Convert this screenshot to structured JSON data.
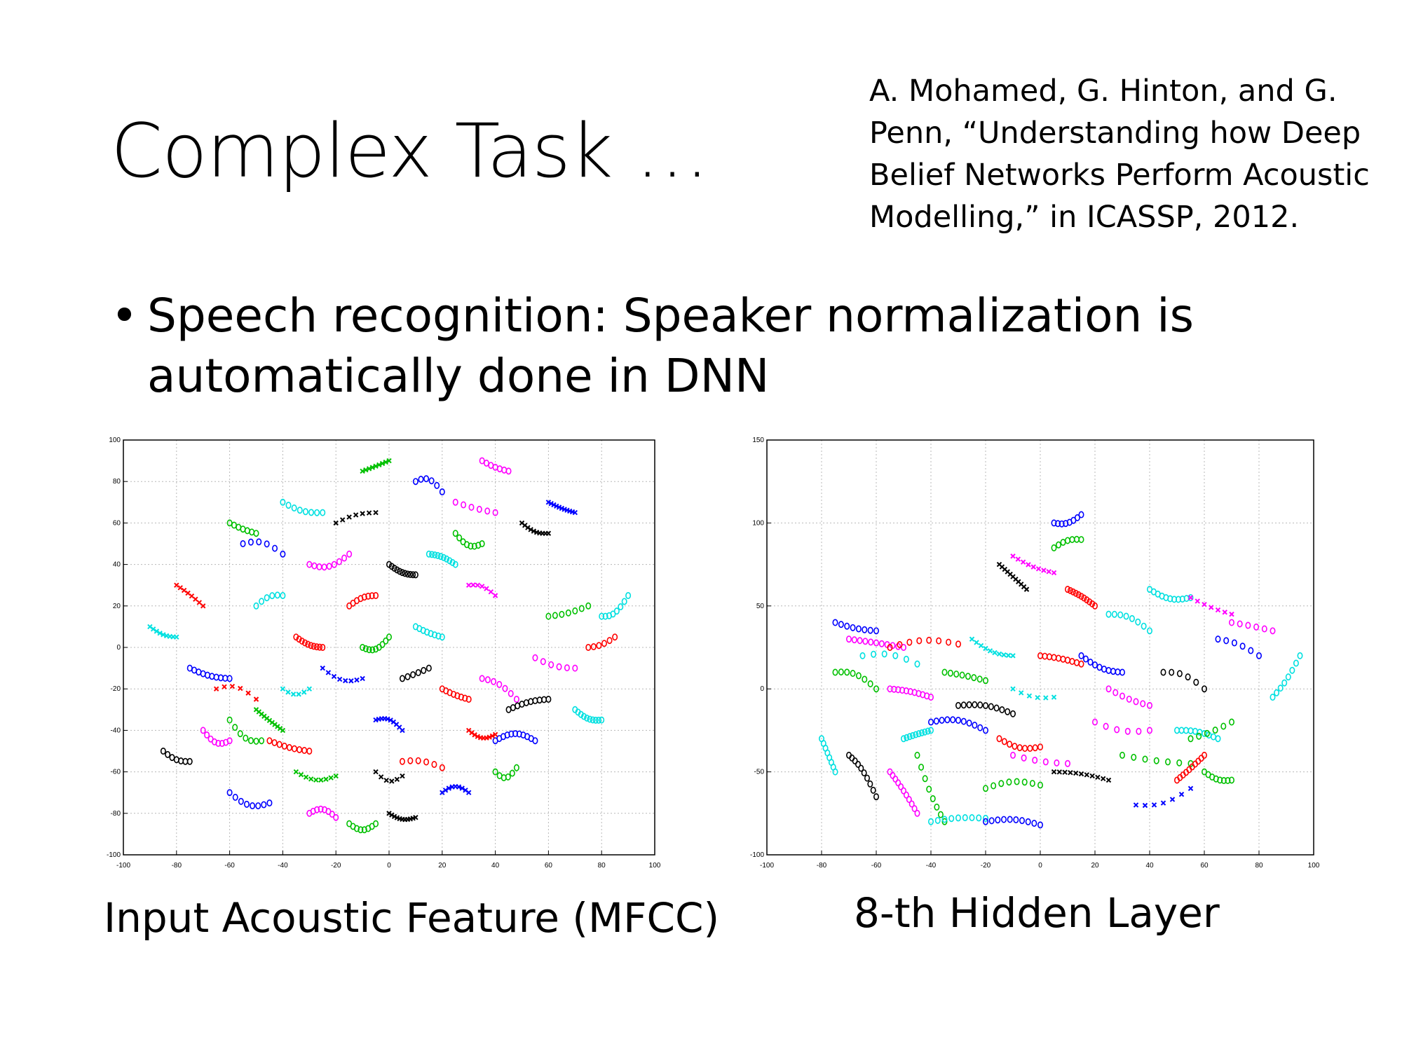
{
  "slide": {
    "title": "Complex Task …",
    "citation": "A. Mohamed, G. Hinton, and G. Penn, “Understanding how Deep Belief Networks Perform Acoustic Modelling,” in ICASSP, 2012.",
    "bullet_symbol": "•",
    "bullet": "Speech recognition: Speaker normalization is automatically done in DNN"
  },
  "captions": {
    "left": "Input Acoustic Feature (MFCC)",
    "right": "8-th Hidden Layer"
  },
  "colors": {
    "series": [
      "#ff0000",
      "#00c000",
      "#0000ff",
      "#00e0e0",
      "#ff00ff",
      "#000000"
    ]
  },
  "chart_data": [
    {
      "type": "scatter",
      "title": "",
      "xlabel": "",
      "ylabel": "",
      "xlim": [
        -100,
        100
      ],
      "ylim": [
        -100,
        100
      ],
      "xticks": [
        "-100",
        "-80",
        "-60",
        "-40",
        "-20",
        "0",
        "20",
        "40",
        "60",
        "80",
        "100"
      ],
      "yticks": [
        "100",
        "80",
        "60",
        "40",
        "20",
        "0",
        "-20",
        "-40",
        "-60",
        "-80",
        "-100"
      ],
      "grid": true,
      "markers": [
        "o",
        "x"
      ],
      "trajectories": [
        [
          -80,
          30,
          -70,
          20,
          "#ff0000"
        ],
        [
          -60,
          60,
          -50,
          55,
          "#00c000"
        ],
        [
          -55,
          50,
          -40,
          45,
          "#0000ff"
        ],
        [
          -40,
          70,
          -25,
          65,
          "#00e0e0"
        ],
        [
          -30,
          40,
          -15,
          45,
          "#ff00ff"
        ],
        [
          -20,
          60,
          -5,
          65,
          "#000000"
        ],
        [
          -10,
          85,
          0,
          90,
          "#00c000"
        ],
        [
          10,
          80,
          20,
          75,
          "#0000ff"
        ],
        [
          25,
          70,
          40,
          65,
          "#ff00ff"
        ],
        [
          35,
          90,
          45,
          85,
          "#ff00ff"
        ],
        [
          50,
          60,
          60,
          55,
          "#000000"
        ],
        [
          60,
          70,
          70,
          65,
          "#0000ff"
        ],
        [
          -90,
          10,
          -80,
          5,
          "#00e0e0"
        ],
        [
          -75,
          -10,
          -60,
          -15,
          "#0000ff"
        ],
        [
          -65,
          -20,
          -50,
          -25,
          "#ff0000"
        ],
        [
          -50,
          -30,
          -40,
          -40,
          "#00c000"
        ],
        [
          -45,
          -45,
          -30,
          -50,
          "#ff0000"
        ],
        [
          -35,
          -60,
          -20,
          -62,
          "#00c000"
        ],
        [
          -25,
          -10,
          -10,
          -15,
          "#0000ff"
        ],
        [
          -15,
          20,
          -5,
          25,
          "#ff0000"
        ],
        [
          0,
          40,
          10,
          35,
          "#000000"
        ],
        [
          10,
          10,
          20,
          5,
          "#00e0e0"
        ],
        [
          20,
          -20,
          30,
          -25,
          "#ff0000"
        ],
        [
          30,
          30,
          40,
          25,
          "#ff00ff"
        ],
        [
          35,
          -15,
          48,
          -25,
          "#ff00ff"
        ],
        [
          40,
          -45,
          55,
          -45,
          "#0000ff"
        ],
        [
          45,
          -30,
          60,
          -25,
          "#000000"
        ],
        [
          55,
          -5,
          70,
          -10,
          "#ff00ff"
        ],
        [
          60,
          15,
          75,
          20,
          "#00c000"
        ],
        [
          70,
          -30,
          80,
          -35,
          "#00e0e0"
        ],
        [
          75,
          0,
          85,
          5,
          "#ff0000"
        ],
        [
          80,
          15,
          90,
          25,
          "#00e0e0"
        ],
        [
          -30,
          -80,
          -20,
          -82,
          "#ff00ff"
        ],
        [
          -15,
          -85,
          -5,
          -85,
          "#00c000"
        ],
        [
          0,
          -80,
          10,
          -82,
          "#000000"
        ],
        [
          5,
          -55,
          20,
          -58,
          "#ff0000"
        ],
        [
          20,
          -70,
          30,
          -70,
          "#0000ff"
        ],
        [
          30,
          -40,
          40,
          -42,
          "#ff0000"
        ],
        [
          40,
          -60,
          48,
          -58,
          "#00c000"
        ],
        [
          -5,
          -35,
          5,
          -40,
          "#0000ff"
        ],
        [
          -60,
          -70,
          -45,
          -75,
          "#0000ff"
        ],
        [
          -70,
          -40,
          -60,
          -45,
          "#ff00ff"
        ],
        [
          -85,
          -50,
          -75,
          -55,
          "#000000"
        ],
        [
          -40,
          -20,
          -30,
          -20,
          "#00e0e0"
        ],
        [
          -10,
          0,
          0,
          5,
          "#00c000"
        ],
        [
          5,
          -15,
          15,
          -10,
          "#000000"
        ],
        [
          -50,
          20,
          -40,
          25,
          "#00e0e0"
        ],
        [
          -35,
          5,
          -25,
          0,
          "#ff0000"
        ],
        [
          15,
          45,
          25,
          40,
          "#00e0e0"
        ],
        [
          25,
          55,
          35,
          50,
          "#00c000"
        ],
        [
          -5,
          -60,
          5,
          -62,
          "#000000"
        ],
        [
          -60,
          -35,
          -48,
          -45,
          "#00c000"
        ]
      ]
    },
    {
      "type": "scatter",
      "title": "",
      "xlabel": "",
      "ylabel": "",
      "xlim": [
        -100,
        100
      ],
      "ylim": [
        -100,
        150
      ],
      "xticks": [
        "-100",
        "-80",
        "-60",
        "-40",
        "-20",
        "0",
        "20",
        "40",
        "60",
        "80",
        "100"
      ],
      "yticks": [
        "150",
        "100",
        "50",
        "0",
        "-50",
        "-100"
      ],
      "grid": true,
      "markers": [
        "o",
        "x"
      ],
      "trajectories": [
        [
          -75,
          40,
          -60,
          35,
          "#0000ff"
        ],
        [
          -70,
          30,
          -50,
          25,
          "#ff00ff"
        ],
        [
          -65,
          20,
          -45,
          15,
          "#00e0e0"
        ],
        [
          -55,
          25,
          -30,
          27,
          "#ff0000"
        ],
        [
          -75,
          10,
          -60,
          0,
          "#00c000"
        ],
        [
          -80,
          -30,
          -75,
          -50,
          "#00e0e0"
        ],
        [
          -70,
          -40,
          -60,
          -65,
          "#000000"
        ],
        [
          -55,
          -50,
          -45,
          -75,
          "#ff00ff"
        ],
        [
          -45,
          -40,
          -35,
          -80,
          "#00c000"
        ],
        [
          -40,
          -80,
          -20,
          -78,
          "#00e0e0"
        ],
        [
          -20,
          -80,
          0,
          -82,
          "#0000ff"
        ],
        [
          -20,
          -60,
          0,
          -58,
          "#00c000"
        ],
        [
          -10,
          -40,
          10,
          -45,
          "#ff00ff"
        ],
        [
          5,
          -50,
          25,
          -55,
          "#000000"
        ],
        [
          -25,
          30,
          -10,
          20,
          "#00e0e0"
        ],
        [
          -10,
          80,
          5,
          70,
          "#ff00ff"
        ],
        [
          -15,
          75,
          -5,
          60,
          "#000000"
        ],
        [
          5,
          100,
          15,
          105,
          "#0000ff"
        ],
        [
          5,
          85,
          15,
          90,
          "#00c000"
        ],
        [
          10,
          60,
          20,
          50,
          "#ff0000"
        ],
        [
          15,
          20,
          30,
          10,
          "#0000ff"
        ],
        [
          25,
          45,
          40,
          35,
          "#00e0e0"
        ],
        [
          20,
          -20,
          40,
          -25,
          "#ff00ff"
        ],
        [
          30,
          -40,
          55,
          -45,
          "#00c000"
        ],
        [
          35,
          -70,
          55,
          -60,
          "#0000ff"
        ],
        [
          50,
          -55,
          60,
          -40,
          "#ff0000"
        ],
        [
          40,
          60,
          55,
          55,
          "#00e0e0"
        ],
        [
          55,
          55,
          70,
          45,
          "#ff00ff"
        ],
        [
          65,
          30,
          80,
          20,
          "#0000ff"
        ],
        [
          70,
          40,
          85,
          35,
          "#ff00ff"
        ],
        [
          85,
          -5,
          95,
          20,
          "#00e0e0"
        ],
        [
          60,
          -50,
          70,
          -55,
          "#00c000"
        ],
        [
          -40,
          -20,
          -20,
          -25,
          "#0000ff"
        ],
        [
          -30,
          -10,
          -10,
          -15,
          "#000000"
        ],
        [
          -10,
          0,
          5,
          -5,
          "#00e0e0"
        ],
        [
          0,
          20,
          15,
          15,
          "#ff0000"
        ],
        [
          25,
          0,
          40,
          -10,
          "#ff00ff"
        ],
        [
          45,
          10,
          60,
          0,
          "#000000"
        ],
        [
          50,
          -25,
          65,
          -30,
          "#00e0e0"
        ],
        [
          -15,
          -30,
          0,
          -35,
          "#ff0000"
        ],
        [
          -55,
          0,
          -40,
          -5,
          "#ff00ff"
        ],
        [
          -35,
          10,
          -20,
          5,
          "#00c000"
        ],
        [
          55,
          -30,
          70,
          -20,
          "#00c000"
        ],
        [
          -50,
          -30,
          -40,
          -25,
          "#00e0e0"
        ]
      ]
    }
  ]
}
